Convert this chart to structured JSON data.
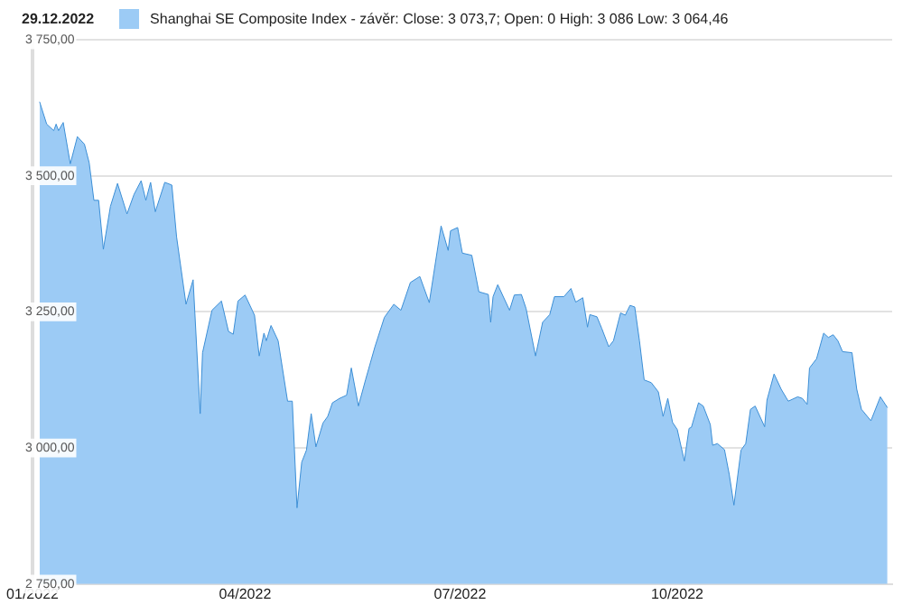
{
  "chart_data": {
    "type": "area",
    "title": "29.12.2022",
    "legend": "top left",
    "x": [
      "2022-01-04",
      "2022-01-07",
      "2022-01-10",
      "2022-01-11",
      "2022-01-12",
      "2022-01-14",
      "2022-01-17",
      "2022-01-20",
      "2022-01-23",
      "2022-01-25",
      "2022-01-27",
      "2022-01-29",
      "2022-01-31",
      "2022-02-03",
      "2022-02-06",
      "2022-02-10",
      "2022-02-13",
      "2022-02-16",
      "2022-02-18",
      "2022-02-20",
      "2022-02-22",
      "2022-02-26",
      "2022-03-01",
      "2022-03-03",
      "2022-03-07",
      "2022-03-10",
      "2022-03-13",
      "2022-03-14",
      "2022-03-18",
      "2022-03-22",
      "2022-03-25",
      "2022-03-27",
      "2022-03-29",
      "2022-04-01",
      "2022-04-05",
      "2022-04-07",
      "2022-04-09",
      "2022-04-10",
      "2022-04-12",
      "2022-04-15",
      "2022-04-19",
      "2022-04-21",
      "2022-04-23",
      "2022-04-25",
      "2022-04-27",
      "2022-04-29",
      "2022-05-01",
      "2022-05-04",
      "2022-05-06",
      "2022-05-08",
      "2022-05-11",
      "2022-05-14",
      "2022-05-16",
      "2022-05-19",
      "2022-05-22",
      "2022-05-26",
      "2022-05-30",
      "2022-06-03",
      "2022-06-06",
      "2022-06-10",
      "2022-06-14",
      "2022-06-18",
      "2022-06-23",
      "2022-06-26",
      "2022-06-27",
      "2022-06-30",
      "2022-07-02",
      "2022-07-06",
      "2022-07-09",
      "2022-07-13",
      "2022-07-14",
      "2022-07-15",
      "2022-07-17",
      "2022-07-22",
      "2022-07-24",
      "2022-07-27",
      "2022-07-29",
      "2022-08-02",
      "2022-08-05",
      "2022-08-08",
      "2022-08-10",
      "2022-08-14",
      "2022-08-17",
      "2022-08-19",
      "2022-08-22",
      "2022-08-24",
      "2022-08-25",
      "2022-08-28",
      "2022-08-30",
      "2022-09-02",
      "2022-09-04",
      "2022-09-07",
      "2022-09-09",
      "2022-09-11",
      "2022-09-13",
      "2022-09-15",
      "2022-09-17",
      "2022-09-20",
      "2022-09-23",
      "2022-09-25",
      "2022-09-27",
      "2022-09-29",
      "2022-10-01",
      "2022-10-04",
      "2022-10-06",
      "2022-10-07",
      "2022-10-10",
      "2022-10-12",
      "2022-10-15",
      "2022-10-16",
      "2022-10-18",
      "2022-10-21",
      "2022-10-23",
      "2022-10-25",
      "2022-10-28",
      "2022-10-30",
      "2022-11-01",
      "2022-11-03",
      "2022-11-07",
      "2022-11-08",
      "2022-11-11",
      "2022-11-14",
      "2022-11-17",
      "2022-11-21",
      "2022-11-23",
      "2022-11-25",
      "2022-11-26",
      "2022-11-29",
      "2022-12-02",
      "2022-12-04",
      "2022-12-06",
      "2022-12-08",
      "2022-12-10",
      "2022-12-14",
      "2022-12-16",
      "2022-12-18",
      "2022-12-22",
      "2022-12-26",
      "2022-12-29"
    ],
    "series": [
      {
        "name": "Shanghai SE Composite Index - závěr: Close: 3 073,7; Open: 0 High: 3 086 Low: 3 064,46",
        "color": "#9ccbf5",
        "values": [
          3636,
          3595,
          3583,
          3595,
          3583,
          3598,
          3522,
          3572,
          3558,
          3524,
          3455,
          3455,
          3365,
          3444,
          3486,
          3430,
          3466,
          3491,
          3455,
          3488,
          3434,
          3488,
          3483,
          3388,
          3264,
          3309,
          3063,
          3175,
          3253,
          3270,
          3214,
          3209,
          3270,
          3281,
          3244,
          3169,
          3211,
          3197,
          3225,
          3197,
          3086,
          3086,
          2890,
          2974,
          2996,
          3063,
          3002,
          3046,
          3058,
          3083,
          3091,
          3097,
          3147,
          3077,
          3125,
          3186,
          3240,
          3264,
          3253,
          3304,
          3315,
          3267,
          3408,
          3363,
          3399,
          3405,
          3358,
          3354,
          3287,
          3282,
          3231,
          3278,
          3300,
          3253,
          3281,
          3282,
          3256,
          3169,
          3231,
          3245,
          3278,
          3278,
          3293,
          3268,
          3276,
          3222,
          3245,
          3241,
          3220,
          3186,
          3197,
          3248,
          3244,
          3262,
          3259,
          3197,
          3125,
          3120,
          3103,
          3058,
          3091,
          3047,
          3034,
          2976,
          3036,
          3038,
          3083,
          3077,
          3043,
          3005,
          3008,
          2997,
          2952,
          2895,
          2996,
          3008,
          3071,
          3077,
          3039,
          3088,
          3136,
          3108,
          3086,
          3094,
          3091,
          3080,
          3147,
          3164,
          3211,
          3203,
          3208,
          3197,
          3177,
          3175,
          3108,
          3071,
          3050,
          3094,
          3074
        ]
      }
    ],
    "xlim": [
      "2022-01-01",
      "2022-12-31"
    ],
    "xticks": [
      {
        "value": "2022-01-01",
        "label": "01/2022"
      },
      {
        "value": "2022-04-01",
        "label": "04/2022"
      },
      {
        "value": "2022-07-01",
        "label": "07/2022"
      },
      {
        "value": "2022-10-01",
        "label": "10/2022"
      }
    ],
    "ylim": [
      2750,
      3750
    ],
    "yticks": [
      {
        "value": 2750,
        "label": "2 750,00"
      },
      {
        "value": 3000,
        "label": "3 000,00"
      },
      {
        "value": 3250,
        "label": "3 250,00"
      },
      {
        "value": 3500,
        "label": "3 500,00"
      },
      {
        "value": 3750,
        "label": "3 750,00"
      }
    ],
    "grid": "y"
  }
}
